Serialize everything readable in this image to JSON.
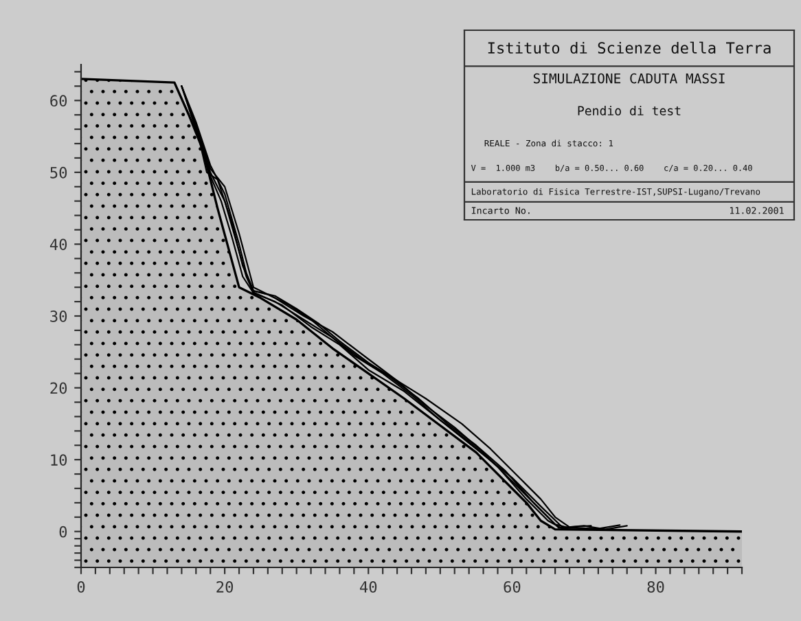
{
  "chart_data": {
    "type": "area",
    "annotations": [
      "Istituto di Scienze della Terra",
      "SIMULAZIONE CADUTA MASSI",
      "Pendio di test",
      "REALE - Zona di stacco: 1",
      "V =  1.000 m3    b/a = 0.50... 0.60    c/a = 0.20... 0.40",
      "Laboratorio di Fisica Terrestre-IST,SUPSI-Lugano/Trevano",
      "Incarto No.",
      "11.02.2001"
    ],
    "xlim": [
      0,
      92
    ],
    "ylim": [
      -5,
      65
    ],
    "xticks": [
      0,
      {
        "value": 2,
        "label": null
      },
      {
        "value": 4,
        "label": null
      },
      {
        "value": 6,
        "label": null
      },
      {
        "value": 8,
        "label": null
      },
      {
        "value": 10,
        "label": null
      },
      {
        "value": 12,
        "label": null
      },
      {
        "value": 14,
        "label": null
      },
      {
        "value": 16,
        "label": null
      },
      {
        "value": 18,
        "label": null
      },
      20,
      {
        "value": 22,
        "label": null
      },
      {
        "value": 24,
        "label": null
      },
      {
        "value": 26,
        "label": null
      },
      {
        "value": 28,
        "label": null
      },
      {
        "value": 30,
        "label": null
      },
      {
        "value": 32,
        "label": null
      },
      {
        "value": 34,
        "label": null
      },
      {
        "value": 36,
        "label": null
      },
      {
        "value": 38,
        "label": null
      },
      40,
      {
        "value": 42,
        "label": null
      },
      {
        "value": 44,
        "label": null
      },
      {
        "value": 46,
        "label": null
      },
      {
        "value": 48,
        "label": null
      },
      {
        "value": 50,
        "label": null
      },
      {
        "value": 52,
        "label": null
      },
      {
        "value": 54,
        "label": null
      },
      {
        "value": 56,
        "label": null
      },
      {
        "value": 58,
        "label": null
      },
      60,
      {
        "value": 62,
        "label": null
      },
      {
        "value": 64,
        "label": null
      },
      {
        "value": 66,
        "label": null
      },
      {
        "value": 68,
        "label": null
      },
      {
        "value": 70,
        "label": null
      },
      {
        "value": 72,
        "label": null
      },
      {
        "value": 74,
        "label": null
      },
      {
        "value": 76,
        "label": null
      },
      {
        "value": 78,
        "label": null
      },
      80,
      {
        "value": 82,
        "label": null
      },
      {
        "value": 84,
        "label": null
      },
      {
        "value": 86,
        "label": null
      },
      {
        "value": 88,
        "label": null
      },
      {
        "value": 90,
        "label": null
      },
      {
        "value": 92,
        "label": null
      }
    ],
    "yticks": [
      {
        "value": -5,
        "label": null
      },
      {
        "value": -4,
        "label": null
      },
      {
        "value": -3,
        "label": null
      },
      {
        "value": -2,
        "label": null
      },
      {
        "value": -1,
        "label": null
      },
      0,
      {
        "value": 2,
        "label": null
      },
      {
        "value": 4,
        "label": null
      },
      {
        "value": 6,
        "label": null
      },
      {
        "value": 8,
        "label": null
      },
      10,
      {
        "value": 12,
        "label": null
      },
      {
        "value": 14,
        "label": null
      },
      {
        "value": 16,
        "label": null
      },
      {
        "value": 18,
        "label": null
      },
      20,
      {
        "value": 22,
        "label": null
      },
      {
        "value": 24,
        "label": null
      },
      {
        "value": 26,
        "label": null
      },
      {
        "value": 28,
        "label": null
      },
      30,
      {
        "value": 32,
        "label": null
      },
      {
        "value": 34,
        "label": null
      },
      {
        "value": 36,
        "label": null
      },
      {
        "value": 38,
        "label": null
      },
      40,
      {
        "value": 42,
        "label": null
      },
      {
        "value": 44,
        "label": null
      },
      {
        "value": 46,
        "label": null
      },
      {
        "value": 48,
        "label": null
      },
      50,
      {
        "value": 52,
        "label": null
      },
      {
        "value": 54,
        "label": null
      },
      {
        "value": 56,
        "label": null
      },
      {
        "value": 58,
        "label": null
      },
      60,
      {
        "value": 62,
        "label": null
      },
      {
        "value": 64,
        "label": null
      }
    ],
    "bands": [
      {
        "axis": "y",
        "from": -5,
        "to": 0,
        "color": "#000000"
      }
    ],
    "series": [
      {
        "color": "#000000",
        "x": [
          0,
          13,
          15,
          17,
          19,
          22,
          25,
          30,
          35,
          45,
          55,
          60,
          62,
          64,
          66,
          92
        ],
        "values": [
          63,
          62.5,
          58,
          53,
          45,
          34,
          32.5,
          29.5,
          25.5,
          18.5,
          11,
          6,
          4,
          1.5,
          0.3,
          0
        ]
      },
      {
        "type": "line",
        "color": "#000000",
        "x": [
          14,
          16,
          18,
          20,
          22,
          23,
          24,
          27,
          30,
          33,
          36,
          40,
          44,
          48,
          52,
          56,
          60,
          64,
          66.5,
          70,
          73,
          76
        ],
        "values": [
          62,
          57,
          51,
          47,
          40,
          36,
          33.5,
          32.8,
          31,
          29,
          26.5,
          23.5,
          21,
          17.5,
          14.5,
          11,
          7,
          3,
          0.5,
          0.8,
          0.3,
          0.8
        ]
      },
      {
        "type": "line",
        "color": "#000000",
        "x": [
          14,
          16,
          17.5,
          19,
          21,
          22.5,
          24,
          26,
          29,
          32,
          35,
          38,
          42,
          46,
          50,
          54,
          58,
          62,
          65,
          67,
          69
        ],
        "values": [
          62,
          56.5,
          50,
          49,
          43,
          37,
          33.5,
          33,
          31.5,
          29.5,
          27,
          24.5,
          22,
          19,
          15.5,
          12.5,
          9,
          4.5,
          1.5,
          0.4,
          0.6
        ]
      },
      {
        "type": "line",
        "color": "#000000",
        "x": [
          14,
          16,
          18,
          19.5,
          21,
          22.5,
          24,
          27,
          31,
          35,
          39,
          43,
          47,
          51,
          55,
          59,
          63,
          66,
          68,
          72,
          75
        ],
        "values": [
          62,
          56,
          49.5,
          46,
          41,
          35.5,
          33.2,
          32,
          29.5,
          27,
          24,
          21.5,
          18.5,
          15,
          12,
          8.5,
          4,
          1,
          0.5,
          0.4,
          0.9
        ]
      },
      {
        "type": "line",
        "color": "#000000",
        "x": [
          14,
          16,
          18,
          20,
          22,
          23,
          24,
          28,
          32,
          36,
          40,
          45,
          50,
          55,
          60,
          64,
          67
        ],
        "values": [
          62,
          56,
          50,
          46,
          39,
          35.5,
          33.3,
          31.5,
          28.5,
          26,
          22.5,
          19.5,
          15.5,
          11.5,
          7.5,
          3.5,
          0.6
        ]
      },
      {
        "type": "line",
        "color": "#000000",
        "x": [
          14,
          16,
          18,
          20,
          22,
          24,
          27,
          31,
          35,
          40,
          44,
          48,
          53,
          57,
          61,
          64,
          66,
          68,
          71
        ],
        "values": [
          62,
          56.5,
          50.5,
          48,
          41.5,
          34,
          32.5,
          30,
          27.8,
          24,
          21,
          18.5,
          15,
          11.5,
          7.5,
          4.5,
          2,
          0.6,
          0.8
        ]
      }
    ]
  }
}
